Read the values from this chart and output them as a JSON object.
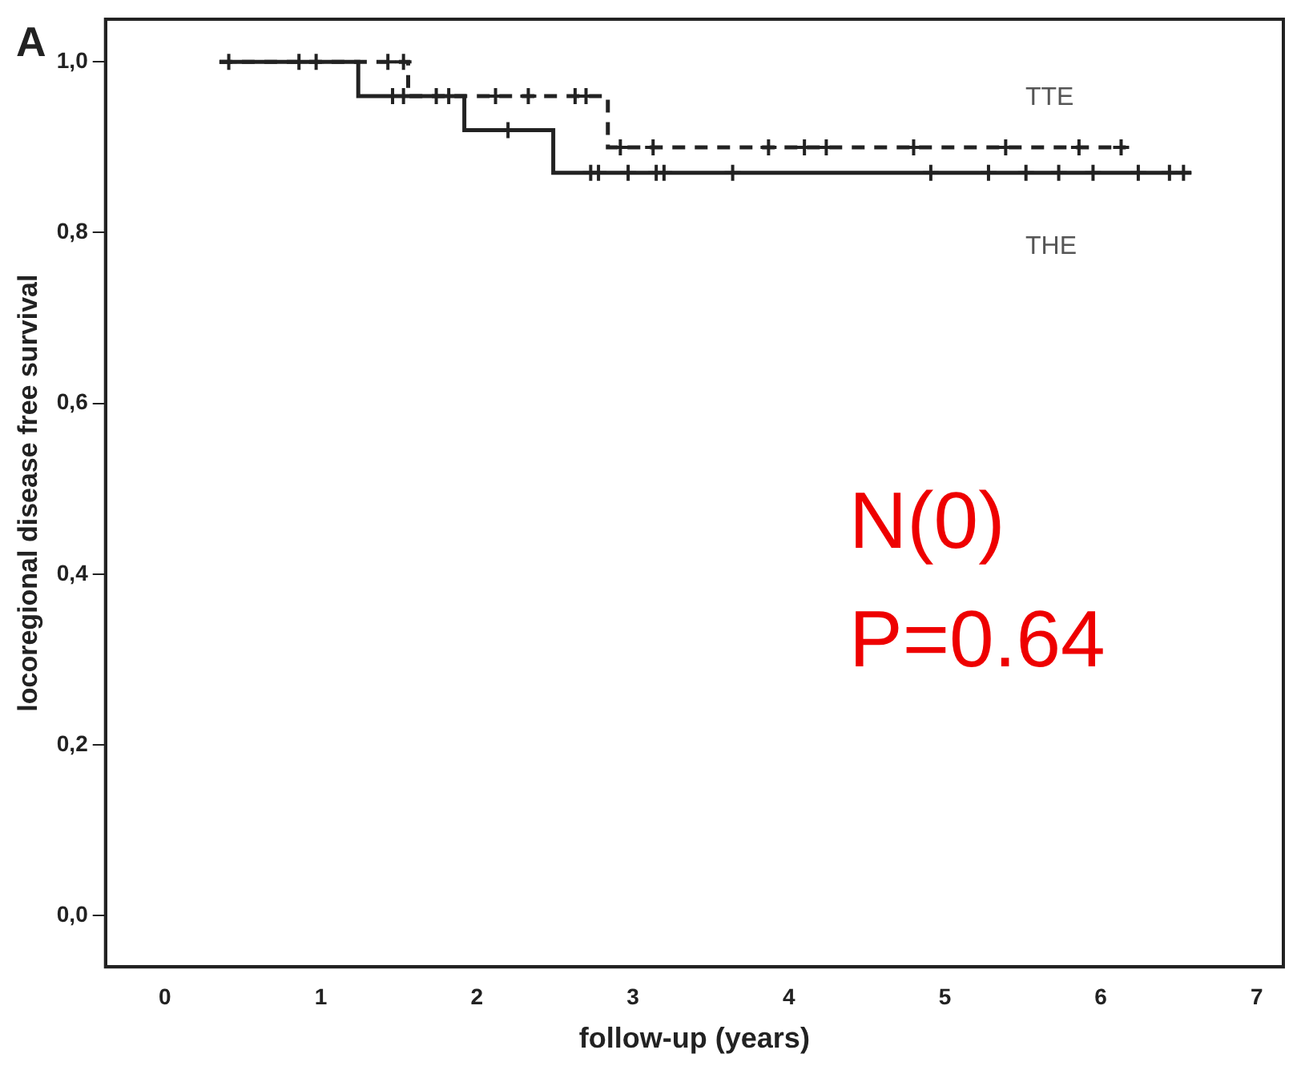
{
  "chart_data": {
    "type": "step",
    "xlabel": "follow-up (years)",
    "ylabel": "locoregional disease free survival",
    "xlim": [
      -0.38,
      7.17
    ],
    "xticks": [
      0,
      1,
      2,
      3,
      4,
      5,
      6,
      7
    ],
    "ylim": [
      -0.06,
      1.05
    ],
    "yticks": [
      {
        "value": 0,
        "label": "0,0"
      },
      {
        "value": 0.2,
        "label": "0,2"
      },
      {
        "value": 0.4,
        "label": "0,4"
      },
      {
        "value": 0.6,
        "label": "0,6"
      },
      {
        "value": 0.8,
        "label": "0,8"
      },
      {
        "value": 1,
        "label": "1,0"
      }
    ],
    "series": [
      {
        "color": "#222222",
        "line_style": "solid",
        "x": [
          0.35,
          1.24,
          1.92,
          2.49,
          6.58
        ],
        "values": [
          1.0,
          0.96,
          0.92,
          0.87,
          0.87
        ]
      },
      {
        "color": "#222222",
        "line_style": "dashed",
        "x": [
          0.35,
          1.56,
          2.84,
          6.16
        ],
        "values": [
          1.0,
          0.96,
          0.9,
          0.9
        ]
      },
      {
        "type": "scatter",
        "color": "#222222",
        "marker": "cross",
        "x": [
          0.41,
          0.86,
          0.97,
          1.46,
          1.53,
          1.74,
          1.82,
          2.2,
          2.73,
          2.78,
          2.97,
          3.15,
          3.2,
          3.64,
          4.91,
          5.28,
          5.52,
          5.73,
          5.95,
          6.24,
          6.44,
          6.53
        ],
        "values": [
          1.0,
          1.0,
          1.0,
          0.96,
          0.96,
          0.96,
          0.96,
          0.92,
          0.87,
          0.87,
          0.87,
          0.87,
          0.87,
          0.87,
          0.87,
          0.87,
          0.87,
          0.87,
          0.87,
          0.87,
          0.87,
          0.87
        ]
      },
      {
        "type": "scatter",
        "color": "#222222",
        "marker": "cross",
        "x": [
          1.43,
          1.53,
          2.12,
          2.33,
          2.63,
          2.7,
          2.92,
          3.13,
          3.87,
          4.1,
          4.24,
          4.8,
          5.39,
          5.86,
          6.13
        ],
        "values": [
          1.0,
          1.0,
          0.96,
          0.96,
          0.96,
          0.96,
          0.9,
          0.9,
          0.9,
          0.9,
          0.9,
          0.9,
          0.9,
          0.9,
          0.9
        ]
      }
    ],
    "annotations": [
      "A",
      "TTE",
      "THE",
      "N(0)",
      "P=0.64"
    ],
    "grid": false,
    "legend": false
  }
}
